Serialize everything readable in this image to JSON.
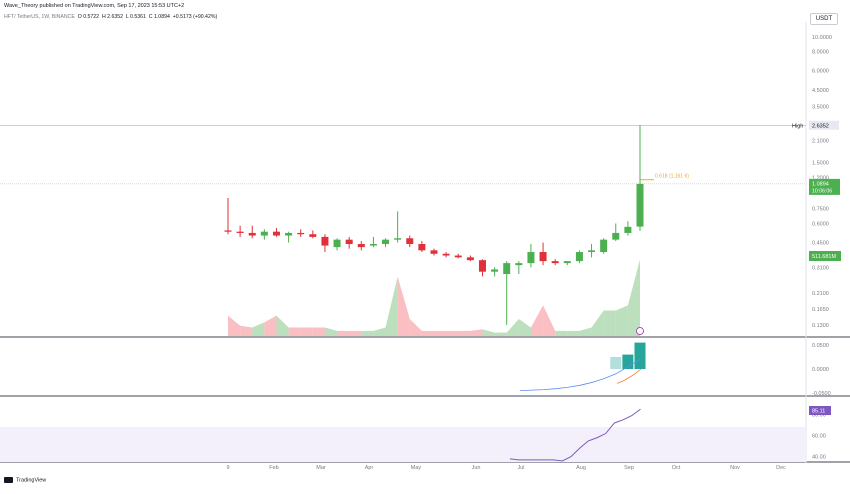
{
  "header": {
    "published_text": "Wave_Theory published on TradingView.com, Sep 17, 2023 15:53 UTC+2",
    "symbol": "HFT/ TetherUS, 1W, BINANCE",
    "open": "O 0.5722",
    "high": "H 2.6352",
    "low": "L 0.5361",
    "close": "C 1.0894",
    "change": "+0.5173 (+90.42%)",
    "currency": "USDT"
  },
  "footer": {
    "brand": "TradingView"
  },
  "colors": {
    "up": "#4caf50",
    "down": "#e0303a",
    "vol_up": "#a5d6a7",
    "vol_down": "#f7a9ae",
    "macd_line": "#5b8def",
    "signal_line": "#f57c3a",
    "hist_up_strong": "#26a69a",
    "hist_up_weak": "#b2dfdb",
    "rsi_line": "#7e57c2",
    "rsi_band": "#f3f0fc",
    "fib": "#f5a623",
    "rsi_badge": "#7e57c2"
  },
  "chart_data": [
    {
      "type": "candlestick",
      "scale": "log",
      "y_ticks": [
        "10.0000",
        "8.0000",
        "6.0000",
        "4.5000",
        "3.5000",
        "2.1000",
        "1.5000",
        "1.2000",
        "0.7500",
        "0.6000",
        "0.4500",
        "0.3100",
        "0.2100",
        "0.1650",
        "0.1300"
      ],
      "x_ticks": [
        "9",
        "Feb",
        "Mar",
        "Apr",
        "May",
        "Jun",
        "Jul",
        "Aug",
        "Sep",
        "Oct",
        "Nov",
        "Dec"
      ],
      "candles": [
        {
          "o": 0.54,
          "h": 0.88,
          "l": 0.51,
          "c": 0.53
        },
        {
          "o": 0.53,
          "h": 0.58,
          "l": 0.49,
          "c": 0.52
        },
        {
          "o": 0.52,
          "h": 0.58,
          "l": 0.48,
          "c": 0.5
        },
        {
          "o": 0.5,
          "h": 0.55,
          "l": 0.47,
          "c": 0.53
        },
        {
          "o": 0.53,
          "h": 0.56,
          "l": 0.49,
          "c": 0.5
        },
        {
          "o": 0.5,
          "h": 0.53,
          "l": 0.45,
          "c": 0.52
        },
        {
          "o": 0.52,
          "h": 0.55,
          "l": 0.49,
          "c": 0.51
        },
        {
          "o": 0.51,
          "h": 0.54,
          "l": 0.48,
          "c": 0.49
        },
        {
          "o": 0.49,
          "h": 0.51,
          "l": 0.39,
          "c": 0.43
        },
        {
          "o": 0.42,
          "h": 0.48,
          "l": 0.4,
          "c": 0.47
        },
        {
          "o": 0.47,
          "h": 0.49,
          "l": 0.41,
          "c": 0.44
        },
        {
          "o": 0.44,
          "h": 0.46,
          "l": 0.4,
          "c": 0.42
        },
        {
          "o": 0.43,
          "h": 0.49,
          "l": 0.42,
          "c": 0.44
        },
        {
          "o": 0.44,
          "h": 0.48,
          "l": 0.42,
          "c": 0.47
        },
        {
          "o": 0.47,
          "h": 0.72,
          "l": 0.45,
          "c": 0.48
        },
        {
          "o": 0.48,
          "h": 0.5,
          "l": 0.42,
          "c": 0.44
        },
        {
          "o": 0.44,
          "h": 0.46,
          "l": 0.39,
          "c": 0.4
        },
        {
          "o": 0.4,
          "h": 0.41,
          "l": 0.37,
          "c": 0.38
        },
        {
          "o": 0.38,
          "h": 0.39,
          "l": 0.36,
          "c": 0.37
        },
        {
          "o": 0.37,
          "h": 0.38,
          "l": 0.355,
          "c": 0.36
        },
        {
          "o": 0.36,
          "h": 0.37,
          "l": 0.34,
          "c": 0.345
        },
        {
          "o": 0.345,
          "h": 0.35,
          "l": 0.27,
          "c": 0.29
        },
        {
          "o": 0.29,
          "h": 0.31,
          "l": 0.27,
          "c": 0.3
        },
        {
          "o": 0.28,
          "h": 0.34,
          "l": 0.13,
          "c": 0.33
        },
        {
          "o": 0.32,
          "h": 0.34,
          "l": 0.28,
          "c": 0.33
        },
        {
          "o": 0.33,
          "h": 0.44,
          "l": 0.31,
          "c": 0.39
        },
        {
          "o": 0.39,
          "h": 0.45,
          "l": 0.32,
          "c": 0.34
        },
        {
          "o": 0.34,
          "h": 0.35,
          "l": 0.32,
          "c": 0.33
        },
        {
          "o": 0.33,
          "h": 0.34,
          "l": 0.32,
          "c": 0.34
        },
        {
          "o": 0.34,
          "h": 0.4,
          "l": 0.33,
          "c": 0.39
        },
        {
          "o": 0.39,
          "h": 0.44,
          "l": 0.36,
          "c": 0.4
        },
        {
          "o": 0.39,
          "h": 0.48,
          "l": 0.38,
          "c": 0.47
        },
        {
          "o": 0.47,
          "h": 0.6,
          "l": 0.46,
          "c": 0.52
        },
        {
          "o": 0.52,
          "h": 0.62,
          "l": 0.5,
          "c": 0.57
        },
        {
          "o": 0.5722,
          "h": 2.6352,
          "l": 0.5361,
          "c": 1.0894
        }
      ],
      "high_label": "High",
      "high_value": "2.6352",
      "last_price": "1.0894",
      "countdown": "10:06:06",
      "fib_label": "0.618 (1.161 6)",
      "fib_level": 1.16,
      "volume": {
        "label": "511.681M",
        "values": [
          0.12,
          0.06,
          0.05,
          0.08,
          0.12,
          0.05,
          0.05,
          0.05,
          0.05,
          0.03,
          0.03,
          0.03,
          0.03,
          0.05,
          0.35,
          0.1,
          0.03,
          0.03,
          0.03,
          0.03,
          0.03,
          0.04,
          0.02,
          0.02,
          0.1,
          0.05,
          0.18,
          0.03,
          0.03,
          0.03,
          0.05,
          0.15,
          0.15,
          0.18,
          0.45
        ]
      }
    },
    {
      "type": "bar",
      "name": "MACD",
      "y_ticks": [
        "0.0500",
        "0.0000",
        "-0.0500"
      ],
      "histogram": [
        0.0,
        0.0,
        0.0,
        0.0,
        0.0,
        0.0,
        0.0,
        0.0,
        0.0,
        0.0,
        0.0,
        0.0,
        0.0,
        0.0,
        0.0,
        0.0,
        0.0,
        0.0,
        0.0,
        0.0,
        0.0,
        0.0,
        0.0,
        0.0,
        0.0,
        0.0,
        0.0,
        0.0,
        0.0,
        0.0,
        0.0,
        0.0,
        0.025,
        0.03,
        0.055
      ],
      "macd": [
        -0.045,
        -0.044,
        -0.043,
        -0.041,
        -0.038,
        -0.034,
        -0.028,
        -0.02,
        -0.01,
        0.005,
        0.02
      ],
      "signal": [
        -0.03,
        -0.025,
        -0.018,
        -0.01,
        0.0
      ]
    },
    {
      "type": "line",
      "name": "RSI",
      "y_ticks": [
        "80.00",
        "60.00",
        "40.00"
      ],
      "rsi_label": "85.11",
      "values": [
        38,
        37,
        37,
        37,
        37,
        37,
        36,
        40,
        48,
        55,
        58,
        62,
        72,
        75,
        79,
        85.11
      ]
    }
  ]
}
